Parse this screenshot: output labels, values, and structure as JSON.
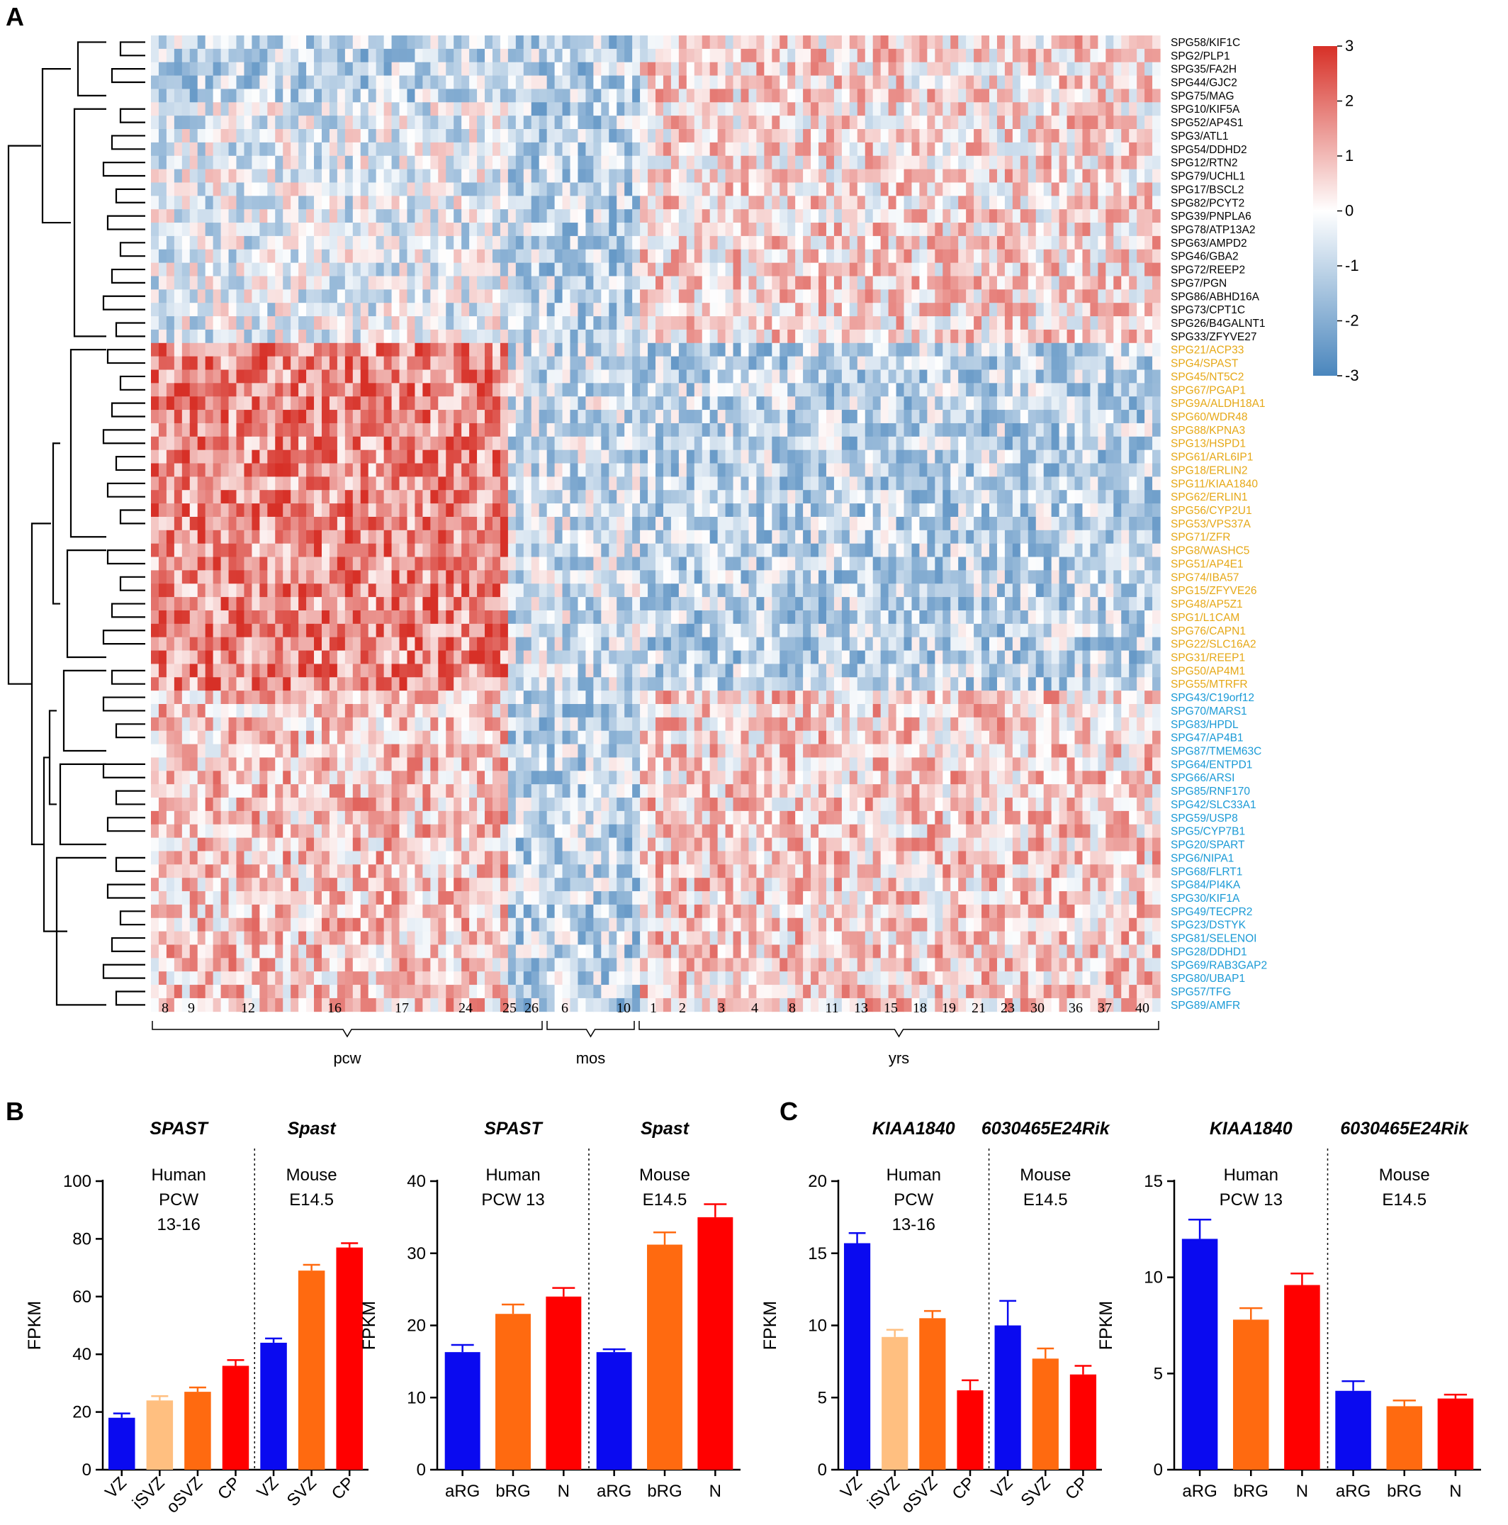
{
  "panel_labels": {
    "a": "A",
    "b": "B",
    "c": "C"
  },
  "heatmap": {
    "colorbar_ticks": [
      "3",
      "2",
      "1",
      "0",
      "-1",
      "-2",
      "-3"
    ],
    "colors": {
      "high": "#d73027",
      "mid": "#ffffff",
      "low": "#4a86bd",
      "group_black": "#000000",
      "group_orange": "#e6a817",
      "group_blue": "#1a9ad6"
    },
    "genes": [
      {
        "name": "SPG58/KIF1C",
        "group": "black"
      },
      {
        "name": "SPG2/PLP1",
        "group": "black"
      },
      {
        "name": "SPG35/FA2H",
        "group": "black"
      },
      {
        "name": "SPG44/GJC2",
        "group": "black"
      },
      {
        "name": "SPG75/MAG",
        "group": "black"
      },
      {
        "name": "SPG10/KIF5A",
        "group": "black"
      },
      {
        "name": "SPG52/AP4S1",
        "group": "black"
      },
      {
        "name": "SPG3/ATL1",
        "group": "black"
      },
      {
        "name": "SPG54/DDHD2",
        "group": "black"
      },
      {
        "name": "SPG12/RTN2",
        "group": "black"
      },
      {
        "name": "SPG79/UCHL1",
        "group": "black"
      },
      {
        "name": "SPG17/BSCL2",
        "group": "black"
      },
      {
        "name": "SPG82/PCYT2",
        "group": "black"
      },
      {
        "name": "SPG39/PNPLA6",
        "group": "black"
      },
      {
        "name": "SPG78/ATP13A2",
        "group": "black"
      },
      {
        "name": "SPG63/AMPD2",
        "group": "black"
      },
      {
        "name": "SPG46/GBA2",
        "group": "black"
      },
      {
        "name": "SPG72/REEP2",
        "group": "black"
      },
      {
        "name": "SPG7/PGN",
        "group": "black"
      },
      {
        "name": "SPG86/ABHD16A",
        "group": "black"
      },
      {
        "name": "SPG73/CPT1C",
        "group": "black"
      },
      {
        "name": "SPG26/B4GALNT1",
        "group": "black"
      },
      {
        "name": "SPG33/ZFYVE27",
        "group": "black"
      },
      {
        "name": "SPG21/ACP33",
        "group": "orange"
      },
      {
        "name": "SPG4/SPAST",
        "group": "orange"
      },
      {
        "name": "SPG45/NT5C2",
        "group": "orange"
      },
      {
        "name": "SPG67/PGAP1",
        "group": "orange"
      },
      {
        "name": "SPG9A/ALDH18A1",
        "group": "orange"
      },
      {
        "name": "SPG60/WDR48",
        "group": "orange"
      },
      {
        "name": "SPG88/KPNA3",
        "group": "orange"
      },
      {
        "name": "SPG13/HSPD1",
        "group": "orange"
      },
      {
        "name": "SPG61/ARL6IP1",
        "group": "orange"
      },
      {
        "name": "SPG18/ERLIN2",
        "group": "orange"
      },
      {
        "name": "SPG11/KIAA1840",
        "group": "orange"
      },
      {
        "name": "SPG62/ERLIN1",
        "group": "orange"
      },
      {
        "name": "SPG56/CYP2U1",
        "group": "orange"
      },
      {
        "name": "SPG53/VPS37A",
        "group": "orange"
      },
      {
        "name": "SPG71/ZFR",
        "group": "orange"
      },
      {
        "name": "SPG8/WASHC5",
        "group": "orange"
      },
      {
        "name": "SPG51/AP4E1",
        "group": "orange"
      },
      {
        "name": "SPG74/IBA57",
        "group": "orange"
      },
      {
        "name": "SPG15/ZFYVE26",
        "group": "orange"
      },
      {
        "name": "SPG48/AP5Z1",
        "group": "orange"
      },
      {
        "name": "SPG1/L1CAM",
        "group": "orange"
      },
      {
        "name": "SPG76/CAPN1",
        "group": "orange"
      },
      {
        "name": "SPG22/SLC16A2",
        "group": "orange"
      },
      {
        "name": "SPG31/REEP1",
        "group": "orange"
      },
      {
        "name": "SPG50/AP4M1",
        "group": "orange"
      },
      {
        "name": "SPG55/MTRFR",
        "group": "orange"
      },
      {
        "name": "SPG43/C19orf12",
        "group": "blue"
      },
      {
        "name": "SPG70/MARS1",
        "group": "blue"
      },
      {
        "name": "SPG83/HPDL",
        "group": "blue"
      },
      {
        "name": "SPG47/AP4B1",
        "group": "blue"
      },
      {
        "name": "SPG87/TMEM63C",
        "group": "blue"
      },
      {
        "name": "SPG64/ENTPD1",
        "group": "blue"
      },
      {
        "name": "SPG66/ARSI",
        "group": "blue"
      },
      {
        "name": "SPG85/RNF170",
        "group": "blue"
      },
      {
        "name": "SPG42/SLC33A1",
        "group": "blue"
      },
      {
        "name": "SPG59/USP8",
        "group": "blue"
      },
      {
        "name": "SPG5/CYP7B1",
        "group": "blue"
      },
      {
        "name": "SPG20/SPART",
        "group": "blue"
      },
      {
        "name": "SPG6/NIPA1",
        "group": "blue"
      },
      {
        "name": "SPG68/FLRT1",
        "group": "blue"
      },
      {
        "name": "SPG84/PI4KA",
        "group": "blue"
      },
      {
        "name": "SPG30/KIF1A",
        "group": "blue"
      },
      {
        "name": "SPG49/TECPR2",
        "group": "blue"
      },
      {
        "name": "SPG23/DSTYK",
        "group": "blue"
      },
      {
        "name": "SPG81/SELENOI",
        "group": "blue"
      },
      {
        "name": "SPG28/DDHD1",
        "group": "blue"
      },
      {
        "name": "SPG69/RAB3GAP2",
        "group": "blue"
      },
      {
        "name": "SPG80/UBAP1",
        "group": "blue"
      },
      {
        "name": "SPG57/TFG",
        "group": "blue"
      },
      {
        "name": "SPG89/AMFR",
        "group": "blue"
      }
    ],
    "age_labels": [
      "8",
      "9",
      "12",
      "16",
      "17",
      "24",
      "25",
      "26",
      "6",
      "10",
      "1",
      "2",
      "3",
      "4",
      "8",
      "11",
      "13",
      "15",
      "18",
      "19",
      "21",
      "23",
      "30",
      "36",
      "37",
      "40"
    ],
    "age_groups": [
      "pcw",
      "mos",
      "yrs"
    ]
  },
  "chart_data": [
    {
      "type": "bar",
      "gene": "SPAST",
      "gene2": "Spast",
      "sub_left": [
        "Human",
        "PCW",
        "13-16"
      ],
      "sub_right": [
        "Mouse",
        "E14.5"
      ],
      "ylabel": "FPKM",
      "ylim": [
        0,
        100
      ],
      "yticks": [
        "0",
        "20",
        "40",
        "60",
        "80",
        "100"
      ],
      "categories": [
        "VZ",
        "iSVZ",
        "oSVZ",
        "CP",
        "VZ",
        "SVZ",
        "CP"
      ],
      "values": [
        18,
        24,
        27,
        36,
        44,
        69,
        77
      ],
      "errors": [
        1.5,
        1.5,
        1.5,
        2,
        1.5,
        2,
        1.5
      ],
      "colors": [
        "#0a0af0",
        "#ffbf80",
        "#ff6a10",
        "#ff0000",
        "#0a0af0",
        "#ff6a10",
        "#ff0000"
      ],
      "split": 4
    },
    {
      "type": "bar",
      "gene": "SPAST",
      "gene2": "Spast",
      "sub_left": [
        "Human",
        "PCW 13"
      ],
      "sub_right": [
        "Mouse",
        "E14.5"
      ],
      "ylabel": "FPKM",
      "ylim": [
        0,
        40
      ],
      "yticks": [
        "0",
        "10",
        "20",
        "30",
        "40"
      ],
      "categories": [
        "aRG",
        "bRG",
        "N",
        "aRG",
        "bRG",
        "N"
      ],
      "values": [
        16.3,
        21.6,
        24,
        16.3,
        31.2,
        35
      ],
      "errors": [
        1,
        1.3,
        1.2,
        0.4,
        1.7,
        1.8
      ],
      "colors": [
        "#0a0af0",
        "#ff6a10",
        "#ff0000",
        "#0a0af0",
        "#ff6a10",
        "#ff0000"
      ],
      "split": 3
    },
    {
      "type": "bar",
      "gene": "KIAA1840",
      "gene2": "6030465E24Rik",
      "sub_left": [
        "Human",
        "PCW",
        "13-16"
      ],
      "sub_right": [
        "Mouse",
        "E14.5"
      ],
      "ylabel": "FPKM",
      "ylim": [
        0,
        20
      ],
      "yticks": [
        "0",
        "5",
        "10",
        "15",
        "20"
      ],
      "categories": [
        "VZ",
        "iSVZ",
        "oSVZ",
        "CP",
        "VZ",
        "SVZ",
        "CP"
      ],
      "values": [
        15.7,
        9.2,
        10.5,
        5.5,
        10,
        7.7,
        6.6
      ],
      "errors": [
        0.7,
        0.5,
        0.5,
        0.7,
        1.7,
        0.7,
        0.6
      ],
      "colors": [
        "#0a0af0",
        "#ffbf80",
        "#ff6a10",
        "#ff0000",
        "#0a0af0",
        "#ff6a10",
        "#ff0000"
      ],
      "split": 4
    },
    {
      "type": "bar",
      "gene": "KIAA1840",
      "gene2": "6030465E24Rik",
      "sub_left": [
        "Human",
        "PCW 13"
      ],
      "sub_right": [
        "Mouse",
        "E14.5"
      ],
      "ylabel": "FPKM",
      "ylim": [
        0,
        15
      ],
      "yticks": [
        "0",
        "5",
        "10",
        "15"
      ],
      "categories": [
        "aRG",
        "bRG",
        "N",
        "aRG",
        "bRG",
        "N"
      ],
      "values": [
        12,
        7.8,
        9.6,
        4.1,
        3.3,
        3.7
      ],
      "errors": [
        1,
        0.6,
        0.6,
        0.5,
        0.3,
        0.2
      ],
      "colors": [
        "#0a0af0",
        "#ff6a10",
        "#ff0000",
        "#0a0af0",
        "#ff6a10",
        "#ff0000"
      ],
      "split": 3
    }
  ]
}
